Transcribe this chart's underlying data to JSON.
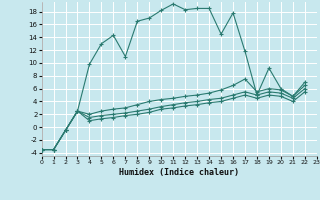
{
  "xlabel": "Humidex (Indice chaleur)",
  "bg_color": "#c8e8ee",
  "grid_color": "#ffffff",
  "line_color": "#2a7a70",
  "x_ticks": [
    0,
    1,
    2,
    3,
    4,
    5,
    6,
    7,
    8,
    9,
    10,
    11,
    12,
    13,
    14,
    15,
    16,
    17,
    18,
    19,
    20,
    21,
    22,
    23
  ],
  "y_ticks": [
    -4,
    -2,
    0,
    2,
    4,
    6,
    8,
    10,
    12,
    14,
    16,
    18
  ],
  "xlim": [
    0,
    23
  ],
  "ylim": [
    -4.5,
    19.5
  ],
  "series": [
    {
      "x": [
        0,
        1,
        2,
        3,
        4,
        5,
        6,
        7,
        8,
        9,
        10,
        11,
        12,
        13,
        14,
        15,
        16,
        17,
        18,
        19,
        20,
        21,
        22
      ],
      "y": [
        -3.5,
        -3.5,
        -0.5,
        2.5,
        9.8,
        13.0,
        14.3,
        11.0,
        16.5,
        17.0,
        18.2,
        19.2,
        18.3,
        18.5,
        18.5,
        14.5,
        17.8,
        11.8,
        5.0,
        9.2,
        6.0,
        4.8,
        7.0
      ]
    },
    {
      "x": [
        0,
        1,
        2,
        3,
        4,
        5,
        6,
        7,
        8,
        9,
        10,
        11,
        12,
        13,
        14,
        15,
        16,
        17,
        18,
        19,
        20,
        21,
        22
      ],
      "y": [
        -3.5,
        -3.5,
        -0.5,
        2.5,
        2.0,
        2.5,
        2.8,
        3.0,
        3.5,
        4.0,
        4.3,
        4.5,
        4.8,
        5.0,
        5.3,
        5.8,
        6.5,
        7.5,
        5.5,
        6.0,
        5.8,
        4.8,
        6.5
      ]
    },
    {
      "x": [
        0,
        1,
        2,
        3,
        4,
        5,
        6,
        7,
        8,
        9,
        10,
        11,
        12,
        13,
        14,
        15,
        16,
        17,
        18,
        19,
        20,
        21,
        22
      ],
      "y": [
        -3.5,
        -3.5,
        -0.5,
        2.5,
        1.5,
        1.8,
        2.0,
        2.2,
        2.5,
        2.8,
        3.2,
        3.5,
        3.8,
        4.0,
        4.3,
        4.5,
        5.0,
        5.5,
        5.0,
        5.5,
        5.3,
        4.5,
        6.0
      ]
    },
    {
      "x": [
        0,
        1,
        2,
        3,
        4,
        5,
        6,
        7,
        8,
        9,
        10,
        11,
        12,
        13,
        14,
        15,
        16,
        17,
        18,
        19,
        20,
        21,
        22
      ],
      "y": [
        -3.5,
        -3.5,
        -0.5,
        2.5,
        1.0,
        1.3,
        1.5,
        1.8,
        2.0,
        2.3,
        2.8,
        3.0,
        3.3,
        3.5,
        3.8,
        4.0,
        4.5,
        5.0,
        4.5,
        5.0,
        4.8,
        4.0,
        5.5
      ]
    }
  ]
}
